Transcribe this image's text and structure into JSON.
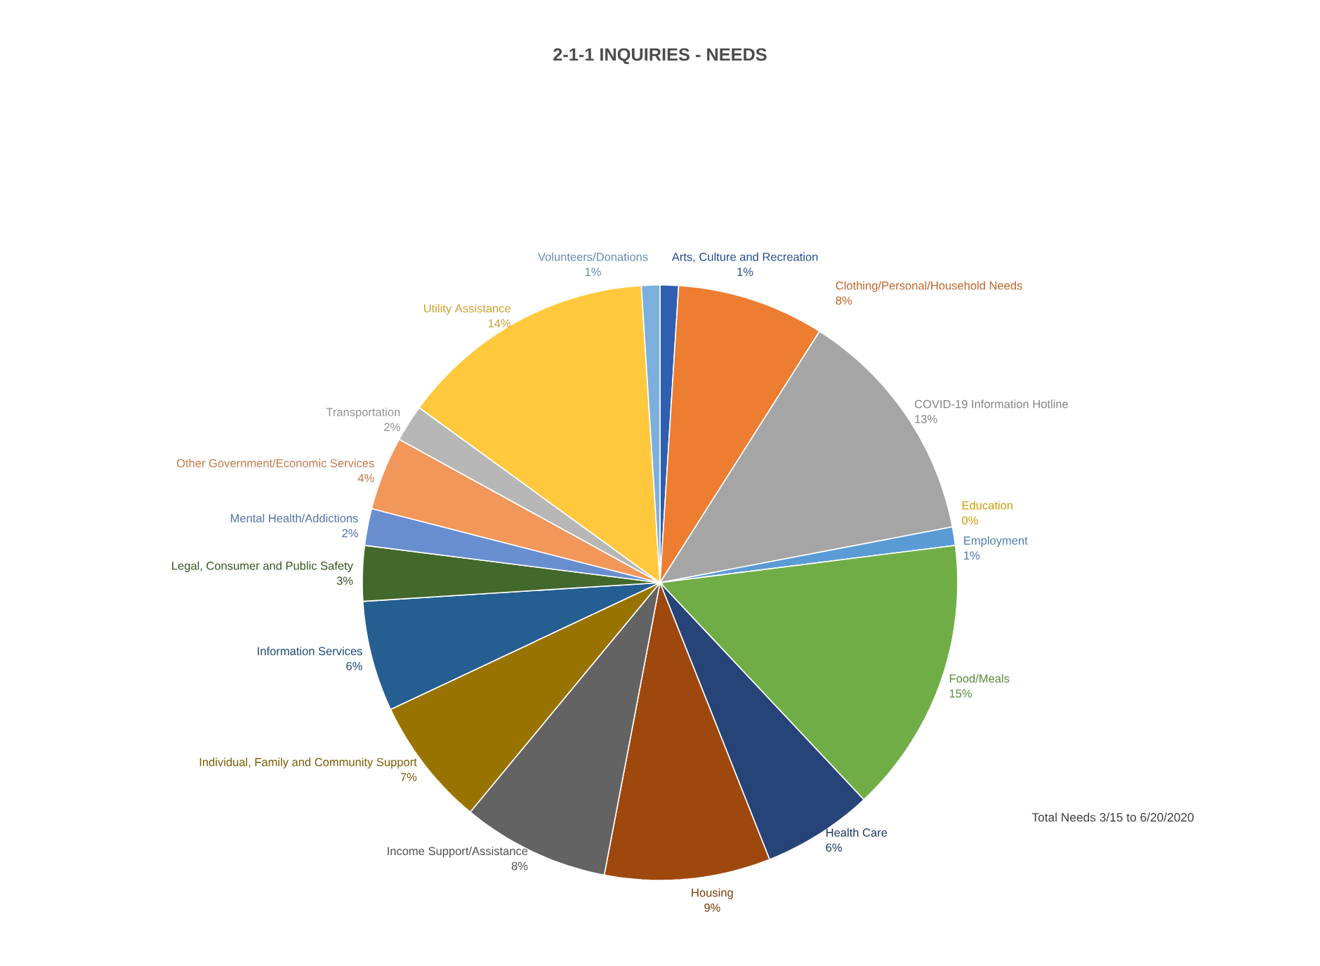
{
  "chart_data": {
    "type": "pie",
    "title": "2-1-1 INQUIRIES - NEEDS",
    "categories": [
      "Arts, Culture and Recreation",
      "Clothing/Personal/Household Needs",
      "COVID-19 Information Hotline",
      "Education",
      "Employment",
      "Food/Meals",
      "Health Care",
      "Housing",
      "Income Support/Assistance",
      "Individual, Family and Community Support",
      "Information Services",
      "Legal, Consumer and Public Safety",
      "Mental Health/Addictions",
      "Other Government/Economic Services",
      "Transportation",
      "Utility Assistance",
      "Volunteers/Donations"
    ],
    "values": [
      1,
      8,
      13,
      0,
      1,
      15,
      6,
      9,
      8,
      7,
      6,
      3,
      2,
      4,
      2,
      14,
      1
    ],
    "value_labels": [
      "1%",
      "8%",
      "13%",
      "0%",
      "1%",
      "15%",
      "6%",
      "9%",
      "8%",
      "7%",
      "6%",
      "3%",
      "2%",
      "4%",
      "2%",
      "14%",
      "1%"
    ],
    "colors": [
      "#2f5fb0",
      "#ed7d31",
      "#a5a5a5",
      "#ffc000",
      "#5b9bd5",
      "#70ad47",
      "#264478",
      "#9e480e",
      "#636363",
      "#997300",
      "#255e91",
      "#43682b",
      "#698ed0",
      "#f1975a",
      "#b7b7b7",
      "#ffc83d",
      "#7cafdd"
    ],
    "annotations": [
      "Total Needs 3/15 to 6/20/2020"
    ]
  }
}
